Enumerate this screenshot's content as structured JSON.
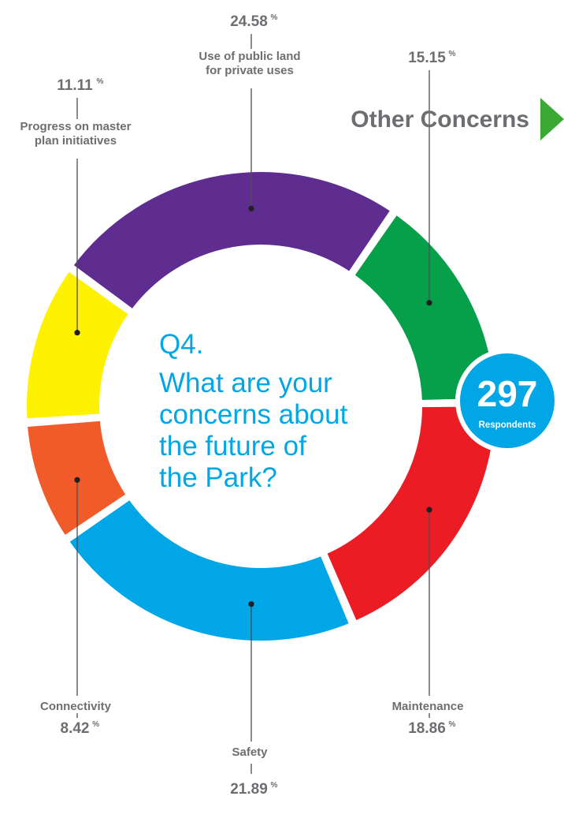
{
  "question": {
    "number": "Q4.",
    "lines": [
      "What are your",
      "concerns about",
      "the future of",
      "the Park?"
    ]
  },
  "respondents": {
    "count": "297",
    "label": "Respondents"
  },
  "other_concerns": {
    "label": "Other Concerns",
    "arrow_color": "#3aaa35"
  },
  "chart_data": {
    "type": "pie",
    "style": "donut",
    "title": "",
    "series": [
      {
        "name": "Use of public land for private uses",
        "label_lines": [
          "Use of public land",
          "for private uses"
        ],
        "value": 24.58,
        "display": "24.58",
        "color": "#5e2d8f"
      },
      {
        "name": "Other Concerns",
        "label_lines": [],
        "value": 15.15,
        "display": "15.15",
        "color": "#07a04a"
      },
      {
        "name": "Maintenance",
        "label_lines": [
          "Maintenance"
        ],
        "value": 18.86,
        "display": "18.86",
        "color": "#ec1c24"
      },
      {
        "name": "Safety",
        "label_lines": [
          "Safety"
        ],
        "value": 21.89,
        "display": "21.89",
        "color": "#00a6e6"
      },
      {
        "name": "Connectivity",
        "label_lines": [
          "Connectivity"
        ],
        "value": 8.42,
        "display": "8.42",
        "color": "#f15a29"
      },
      {
        "name": "Progress on master plan initiatives",
        "label_lines": [
          "Progress on master",
          "plan initiatives"
        ],
        "value": 11.11,
        "display": "11.11",
        "color": "#fff200"
      }
    ],
    "unit": "%"
  }
}
